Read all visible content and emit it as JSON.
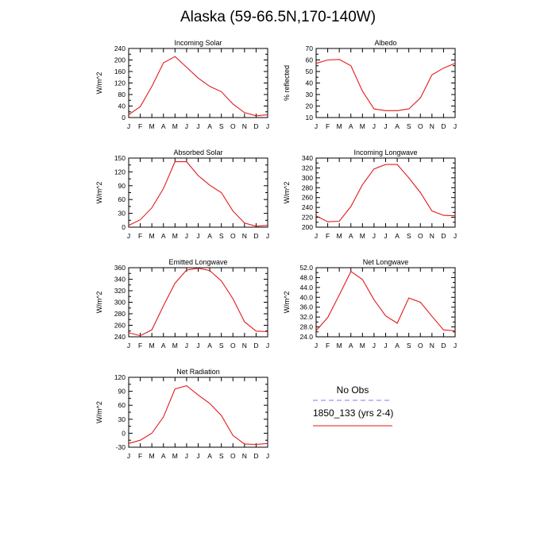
{
  "figure": {
    "title": "Alaska (59-66.5N,170-140W)"
  },
  "legend": {
    "entries": [
      {
        "label": "No Obs",
        "color": "#7b7bff",
        "style": "dashed"
      },
      {
        "label": "1850_133 (yrs 2-4)",
        "color": "#e31a1c",
        "style": "solid"
      }
    ]
  },
  "chart_data": [
    {
      "type": "line",
      "title": "Incoming Solar",
      "ylabel": "W/m^2",
      "ylim": [
        0,
        240
      ],
      "yticks": [
        "0",
        "40",
        "80",
        "120",
        "160",
        "200",
        "240"
      ],
      "categories": [
        "J",
        "F",
        "M",
        "A",
        "M",
        "J",
        "J",
        "A",
        "S",
        "O",
        "N",
        "D",
        "J"
      ],
      "series": [
        {
          "name": "1850_133 (yrs 2-4)",
          "color": "#e31a1c",
          "values": [
            10,
            38,
            108,
            190,
            212,
            175,
            137,
            108,
            90,
            47,
            17,
            6,
            10
          ]
        }
      ]
    },
    {
      "type": "line",
      "title": "Albedo",
      "ylabel": "% reflected",
      "ylim": [
        10,
        70
      ],
      "yticks": [
        "10",
        "20",
        "30",
        "40",
        "50",
        "60",
        "70"
      ],
      "categories": [
        "J",
        "F",
        "M",
        "A",
        "M",
        "J",
        "J",
        "A",
        "S",
        "O",
        "N",
        "D",
        "J"
      ],
      "series": [
        {
          "name": "1850_133 (yrs 2-4)",
          "color": "#e31a1c",
          "values": [
            57,
            60,
            60.5,
            55,
            33,
            17.5,
            16,
            16,
            17.5,
            27,
            47,
            53,
            57
          ]
        }
      ]
    },
    {
      "type": "line",
      "title": "Absorbed Solar",
      "ylabel": "W/m^2",
      "ylim": [
        0,
        150
      ],
      "yticks": [
        "0",
        "30",
        "60",
        "90",
        "120",
        "150"
      ],
      "categories": [
        "J",
        "F",
        "M",
        "A",
        "M",
        "J",
        "J",
        "A",
        "S",
        "O",
        "N",
        "D",
        "J"
      ],
      "series": [
        {
          "name": "1850_133 (yrs 2-4)",
          "color": "#e31a1c",
          "values": [
            4,
            16,
            42,
            84,
            142,
            142,
            112,
            91,
            75,
            35,
            9,
            2,
            4
          ]
        }
      ]
    },
    {
      "type": "line",
      "title": "Incoming Longwave",
      "ylabel": "W/m^2",
      "ylim": [
        200,
        340
      ],
      "yticks": [
        "200",
        "220",
        "240",
        "260",
        "280",
        "300",
        "320",
        "340"
      ],
      "categories": [
        "J",
        "F",
        "M",
        "A",
        "M",
        "J",
        "J",
        "A",
        "S",
        "O",
        "N",
        "D",
        "J"
      ],
      "series": [
        {
          "name": "1850_133 (yrs 2-4)",
          "color": "#e31a1c",
          "values": [
            223,
            211,
            212,
            242,
            286,
            318,
            327,
            327,
            300,
            270,
            233,
            224,
            223
          ]
        }
      ]
    },
    {
      "type": "line",
      "title": "Emitted Longwave",
      "ylabel": "W/m^2",
      "ylim": [
        240,
        360
      ],
      "yticks": [
        "240",
        "260",
        "280",
        "300",
        "320",
        "340",
        "360"
      ],
      "categories": [
        "J",
        "F",
        "M",
        "A",
        "M",
        "J",
        "J",
        "A",
        "S",
        "O",
        "N",
        "D",
        "J"
      ],
      "series": [
        {
          "name": "1850_133 (yrs 2-4)",
          "color": "#e31a1c",
          "values": [
            247,
            242,
            252,
            294,
            333,
            356,
            359,
            355,
            337,
            306,
            266,
            250,
            249
          ]
        }
      ]
    },
    {
      "type": "line",
      "title": "Net Longwave",
      "ylabel": "W/m^2",
      "ylim": [
        24,
        52
      ],
      "yticks": [
        "24.0",
        "28.0",
        "32.0",
        "36.0",
        "40.0",
        "44.0",
        "48.0",
        "52.0"
      ],
      "categories": [
        "J",
        "F",
        "M",
        "A",
        "M",
        "J",
        "J",
        "A",
        "S",
        "O",
        "N",
        "D",
        "J"
      ],
      "series": [
        {
          "name": "1850_133 (yrs 2-4)",
          "color": "#e31a1c",
          "values": [
            26.5,
            31.8,
            41,
            50.5,
            47.2,
            39,
            32.5,
            29.5,
            39.7,
            38,
            32.3,
            26.8,
            26.4
          ]
        }
      ]
    },
    {
      "type": "line",
      "title": "Net Radiation",
      "ylabel": "W/m^2",
      "ylim": [
        -30,
        120
      ],
      "yticks": [
        "-30",
        "0",
        "30",
        "60",
        "90",
        "120"
      ],
      "categories": [
        "J",
        "F",
        "M",
        "A",
        "M",
        "J",
        "J",
        "A",
        "S",
        "O",
        "N",
        "D",
        "J"
      ],
      "series": [
        {
          "name": "1850_133 (yrs 2-4)",
          "color": "#e31a1c",
          "values": [
            -22,
            -15,
            0,
            35,
            95,
            102,
            82,
            64,
            38,
            -5,
            -23,
            -24,
            -22
          ]
        }
      ]
    }
  ]
}
